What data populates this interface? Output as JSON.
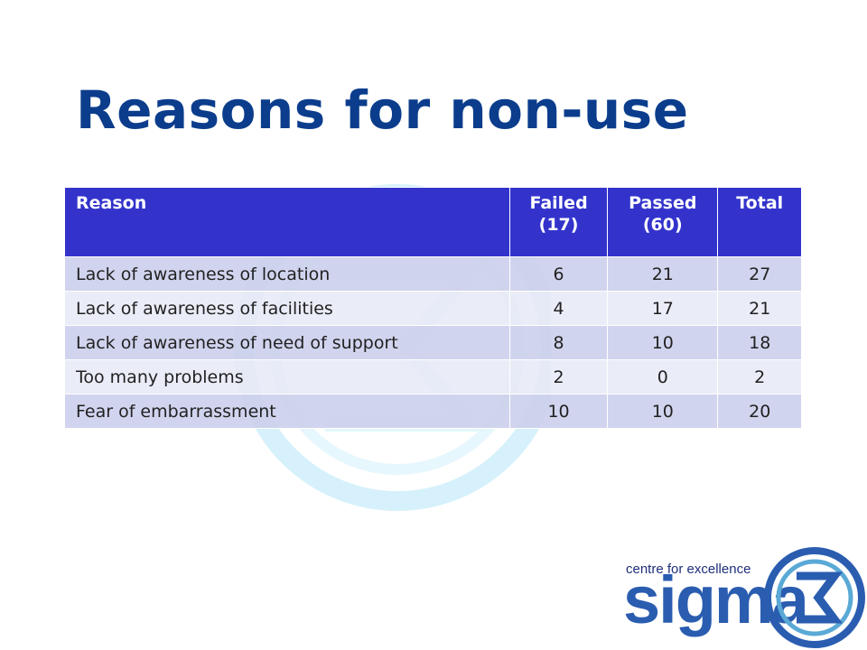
{
  "slide": {
    "title": "Reasons for non-use"
  },
  "table": {
    "headers": {
      "reason": "Reason",
      "failed_line1": "Failed",
      "failed_line2": "(17)",
      "passed_line1": "Passed",
      "passed_line2": "(60)",
      "total": "Total"
    },
    "rows": [
      {
        "reason": "Lack of awareness of location",
        "failed": "6",
        "passed": "21",
        "total": "27"
      },
      {
        "reason": "Lack of awareness of facilities",
        "failed": "4",
        "passed": "17",
        "total": "21"
      },
      {
        "reason": "Lack of awareness of need of support",
        "failed": "8",
        "passed": "10",
        "total": "18"
      },
      {
        "reason": "Too many problems",
        "failed": "2",
        "passed": "0",
        "total": "2"
      },
      {
        "reason": "Fear of embarrassment",
        "failed": "10",
        "passed": "10",
        "total": "20"
      }
    ]
  },
  "logo": {
    "tagline": "centre for excellence",
    "word": "sigma",
    "mark_icon": "sigma-symbol-icon"
  },
  "colors": {
    "title": "#0b3d8c",
    "header_bg": "#3333cc",
    "row_odd": "#ccd0ec",
    "row_even": "#e7e9f6",
    "logo_blue": "#2a5db0",
    "watermark": "#d6f1fb"
  }
}
